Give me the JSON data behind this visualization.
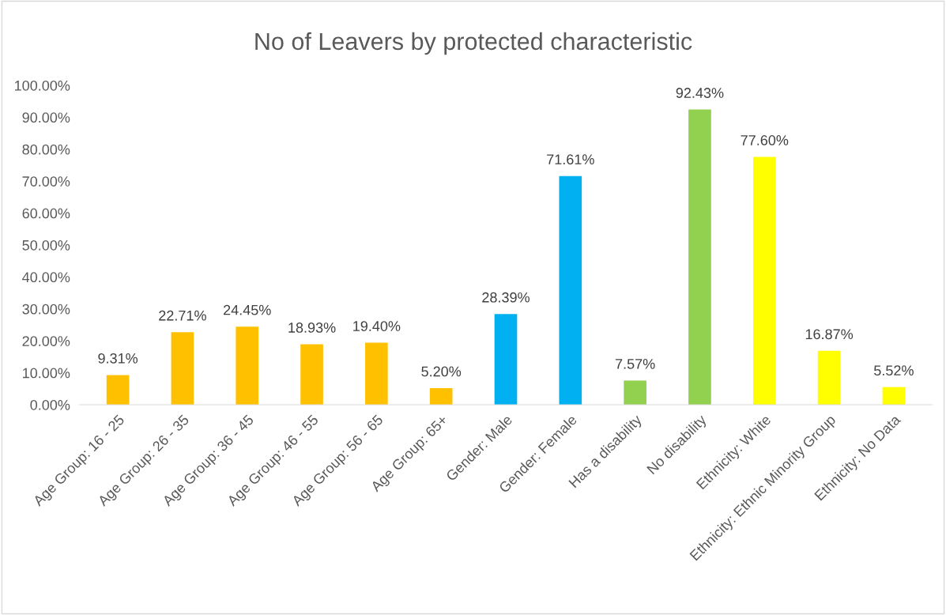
{
  "chart_data": {
    "type": "bar",
    "title": "No of Leavers by protected characteristic",
    "categories": [
      "Age Group: 16 - 25",
      "Age Group: 26 - 35",
      "Age Group: 36 - 45",
      "Age Group: 46 - 55",
      "Age Group: 56 - 65",
      "Age Group: 65+",
      "Gender: Male",
      "Gender: Female",
      "Has a disability",
      "No disability",
      "Ethnicity: White",
      "Ethnicity: Ethnic Minority Group",
      "Ethnicity: No Data"
    ],
    "values": [
      9.31,
      22.71,
      24.45,
      18.93,
      19.4,
      5.2,
      28.39,
      71.61,
      7.57,
      92.43,
      77.6,
      16.87,
      5.52
    ],
    "colors": [
      "#ffc000",
      "#ffc000",
      "#ffc000",
      "#ffc000",
      "#ffc000",
      "#ffc000",
      "#00b0f0",
      "#00b0f0",
      "#92d050",
      "#92d050",
      "#ffff00",
      "#ffff00",
      "#ffff00"
    ],
    "value_labels": [
      "9.31%",
      "22.71%",
      "24.45%",
      "18.93%",
      "19.40%",
      "5.20%",
      "28.39%",
      "71.61%",
      "7.57%",
      "92.43%",
      "77.60%",
      "16.87%",
      "5.52%"
    ],
    "ylim": [
      0,
      100
    ],
    "yticks": [
      {
        "value": 0,
        "label": "0.00%"
      },
      {
        "value": 10,
        "label": "10.00%"
      },
      {
        "value": 20,
        "label": "20.00%"
      },
      {
        "value": 30,
        "label": "30.00%"
      },
      {
        "value": 40,
        "label": "40.00%"
      },
      {
        "value": 50,
        "label": "50.00%"
      },
      {
        "value": 60,
        "label": "60.00%"
      },
      {
        "value": 70,
        "label": "70.00%"
      },
      {
        "value": 80,
        "label": "80.00%"
      },
      {
        "value": 90,
        "label": "90.00%"
      },
      {
        "value": 100,
        "label": "100.00%"
      }
    ],
    "grid": false,
    "legend": false
  }
}
